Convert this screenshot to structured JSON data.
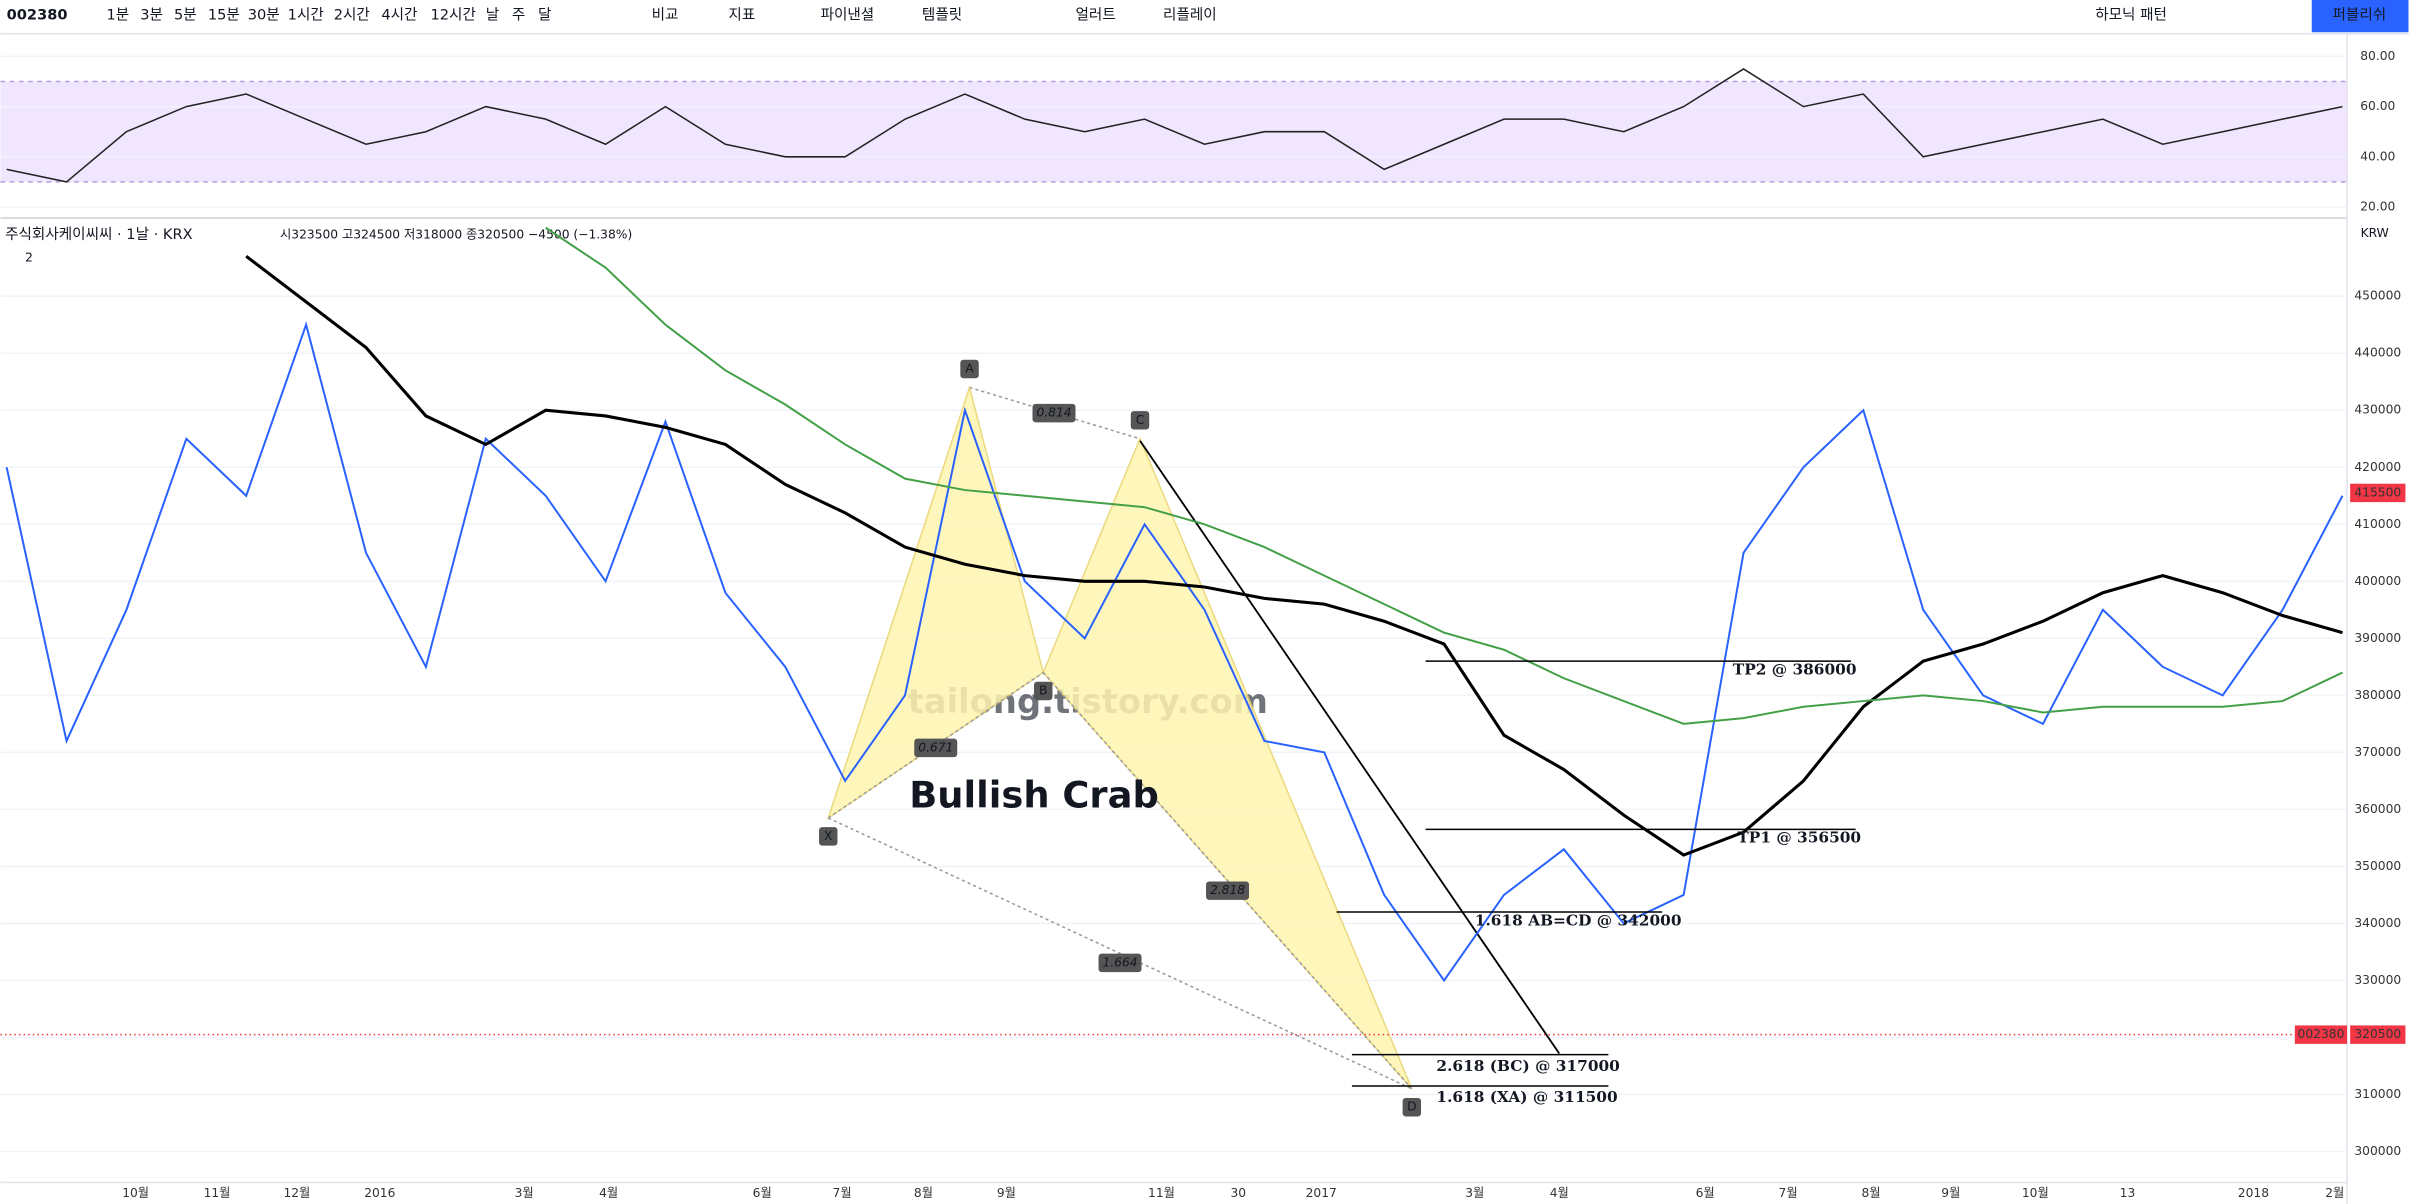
{
  "toolbar": {
    "symbol": "002380",
    "intervals": [
      "1분",
      "3분",
      "5분",
      "15분",
      "30분",
      "1시간",
      "2시간",
      "4시간",
      "12시간",
      "날",
      "주",
      "달"
    ],
    "tools": [
      "비교",
      "지표",
      "파이낸셜",
      "템플릿",
      "얼러트",
      "리플레이"
    ],
    "pattern": "하모닉 패턴",
    "publish": "퍼블리쉬"
  },
  "legend": {
    "title": "주식회사케이씨씨 · 1날 · KRX",
    "ohlc": "시323500 고324500 저318000 종320500 −4500 (−1.38%)",
    "currency": "KRW",
    "indicator_count": "2"
  },
  "chart_data": [
    {
      "type": "line",
      "name": "rsi",
      "ylim": [
        15.6,
        89
      ],
      "yticks": [
        {
          "value": 20,
          "label": "20.00"
        },
        {
          "value": 40,
          "label": "40.00"
        },
        {
          "value": 60,
          "label": "60.00"
        },
        {
          "value": 80,
          "label": "80.00"
        }
      ],
      "band": [
        30,
        70
      ],
      "band_color": "#e9dcff",
      "series": [
        {
          "name": "RSI",
          "color": "#222222",
          "values": [
            35,
            30,
            50,
            60,
            65,
            55,
            45,
            50,
            60,
            55,
            45,
            60,
            45,
            40,
            40,
            55,
            65,
            55,
            50,
            55,
            45,
            50,
            50,
            35,
            45,
            55,
            55,
            50,
            60,
            75,
            60,
            65,
            40,
            45,
            50,
            55,
            45,
            50,
            55,
            60
          ]
        }
      ]
    },
    {
      "type": "line",
      "name": "price",
      "ylim": [
        290800,
        463700
      ],
      "yticks": [
        300000,
        310000,
        320000,
        330000,
        340000,
        350000,
        360000,
        370000,
        380000,
        390000,
        400000,
        410000,
        420000,
        430000,
        440000,
        450000
      ],
      "x_labels": [
        "10월",
        "11월",
        "12월",
        "2016",
        "3월",
        "4월",
        "6월",
        "7월",
        "8월",
        "9월",
        "11월",
        "30",
        "2017",
        "3월",
        "4월",
        "6월",
        "7월",
        "8월",
        "9월",
        "10월",
        "13",
        "2018",
        "2월"
      ],
      "series": [
        {
          "name": "Close",
          "color": "#2962ff",
          "values": [
            420000,
            372000,
            395000,
            425000,
            415000,
            445000,
            405000,
            385000,
            425000,
            415000,
            400000,
            428000,
            398000,
            385000,
            365000,
            380000,
            430000,
            400000,
            390000,
            410000,
            395000,
            372000,
            370000,
            345000,
            330000,
            345000,
            353000,
            340000,
            345000,
            405000,
            420000,
            430000,
            395000,
            380000,
            375000,
            395000,
            385000,
            380000,
            395000,
            415000
          ]
        },
        {
          "name": "MA long",
          "color": "#000000",
          "values": [
            null,
            null,
            null,
            null,
            457000,
            449000,
            441000,
            429000,
            424000,
            430000,
            429000,
            427000,
            424000,
            417000,
            412000,
            406000,
            403000,
            401000,
            400000,
            400000,
            399000,
            397000,
            396000,
            393000,
            389000,
            373000,
            367000,
            359000,
            352000,
            356000,
            365000,
            378000,
            386000,
            389000,
            393000,
            398000,
            401000,
            398000,
            394000,
            391000
          ]
        },
        {
          "name": "MA 200",
          "color": "#43a047",
          "values": [
            null,
            null,
            null,
            null,
            null,
            null,
            null,
            null,
            null,
            462000,
            455000,
            445000,
            437000,
            431000,
            424000,
            418000,
            416000,
            415000,
            414000,
            413000,
            410000,
            406000,
            401000,
            396000,
            391000,
            388000,
            383000,
            379000,
            375000,
            376000,
            378000,
            379000,
            380000,
            379000,
            377000,
            378000,
            378000,
            378000,
            379000,
            384000
          ]
        }
      ],
      "price_tags": [
        415500,
        320500
      ],
      "pattern_name": "Bullish Crab",
      "watermark": "tailong.tistory.com",
      "points": [
        {
          "label": "X",
          "value": 358500
        },
        {
          "label": "A",
          "value": 434000
        },
        {
          "label": "B",
          "value": 384000
        },
        {
          "label": "C",
          "value": 425000
        },
        {
          "label": "D",
          "value": 311000
        }
      ],
      "ratios": [
        "0.671",
        "0.814",
        "2.818",
        "1.664"
      ],
      "levels": [
        {
          "value": 386000,
          "label": "TP2 @ 386000"
        },
        {
          "value": 356500,
          "label": "TP1 @ 356500"
        },
        {
          "value": 342000,
          "label": "1.618 AB=CD @ 342000"
        },
        {
          "value": 317000,
          "label": "2.618 (BC) @ 317000"
        },
        {
          "value": 311500,
          "label": "1.618 (XA) @ 311500"
        }
      ]
    }
  ]
}
